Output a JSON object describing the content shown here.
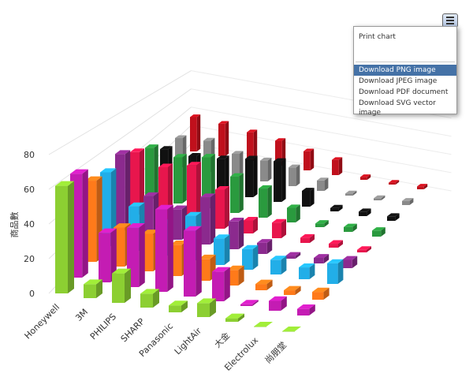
{
  "chart_data": {
    "type": "column3d",
    "y_axis_title": "商品數",
    "categories": [
      "Honeywell",
      "3M",
      "PHILIPS",
      "SHARP",
      "Panasonic",
      "LightAir",
      "大金",
      "Electrolux",
      "尚朋堂"
    ],
    "ylim": [
      0,
      80
    ],
    "yticks": [
      0,
      20,
      40,
      60,
      80
    ],
    "grid": true,
    "series": [
      {
        "color": "#8ccf32",
        "values": [
          62,
          8,
          17,
          8,
          4,
          8,
          2,
          0,
          0
        ]
      },
      {
        "color": "#c41cb3",
        "values": [
          63,
          30,
          36,
          50,
          40,
          18,
          1,
          6,
          4
        ]
      },
      {
        "color": "#ff7a1a",
        "values": [
          52,
          25,
          24,
          20,
          14,
          10,
          4,
          3,
          5
        ]
      },
      {
        "color": "#22aee8",
        "values": [
          50,
          30,
          22,
          30,
          18,
          14,
          10,
          8,
          14
        ]
      },
      {
        "color": "#8b2a8e",
        "values": [
          55,
          28,
          22,
          34,
          20,
          8,
          2,
          4,
          6
        ]
      },
      {
        "color": "#e8164d",
        "values": [
          48,
          40,
          45,
          30,
          10,
          12,
          4,
          3,
          2
        ]
      },
      {
        "color": "#2a9a3e",
        "values": [
          42,
          38,
          42,
          30,
          24,
          12,
          3,
          4,
          5
        ]
      },
      {
        "color": "#111111",
        "values": [
          30,
          28,
          30,
          34,
          36,
          14,
          3,
          4,
          4
        ]
      },
      {
        "color": "#8a8a8a",
        "values": [
          28,
          30,
          22,
          20,
          18,
          10,
          2,
          2,
          4
        ]
      },
      {
        "color": "#c0101c",
        "values": [
          36,
          34,
          30,
          26,
          20,
          16,
          3,
          2,
          3
        ]
      }
    ]
  },
  "menu": {
    "items": [
      "Print chart",
      "Download PNG image",
      "Download JPEG image",
      "Download PDF document",
      "Download SVG vector image"
    ]
  }
}
